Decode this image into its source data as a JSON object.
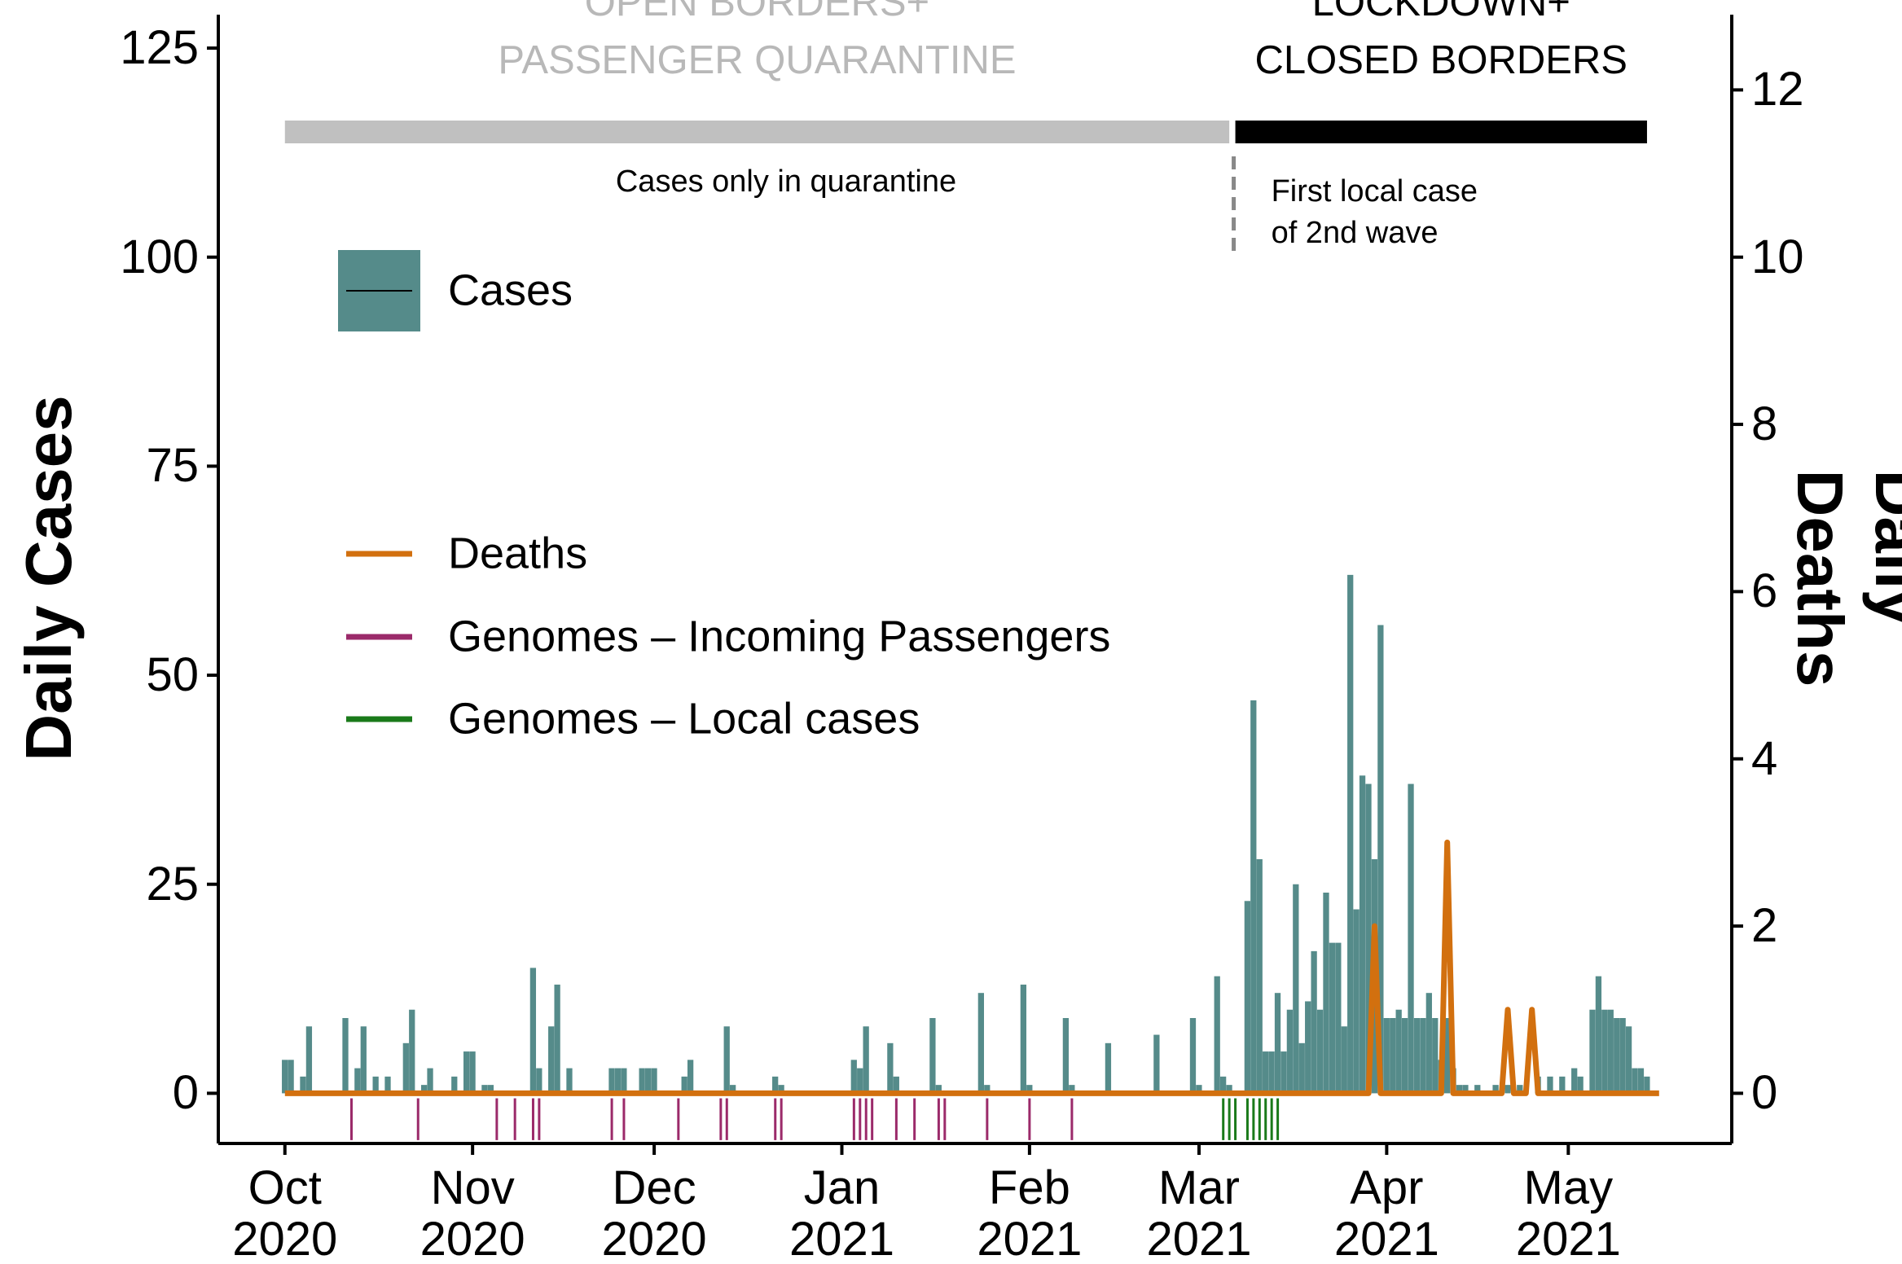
{
  "chart_data": {
    "type": "bar",
    "ylabel": "Daily Cases",
    "y2label": "Daily Deaths",
    "xlim": [
      "2020-09-20",
      "2021-05-28"
    ],
    "xticks": [
      {
        "value": "2020-10-01",
        "label": "Oct\n2020"
      },
      {
        "value": "2020-11-01",
        "label": "Nov\n2020"
      },
      {
        "value": "2020-12-01",
        "label": "Dec\n2020"
      },
      {
        "value": "2021-01-01",
        "label": "Jan\n2021"
      },
      {
        "value": "2021-02-01",
        "label": "Feb\n2021"
      },
      {
        "value": "2021-03-01",
        "label": "Mar\n2021"
      },
      {
        "value": "2021-04-01",
        "label": "Apr\n2021"
      },
      {
        "value": "2021-05-01",
        "label": "May\n2021"
      }
    ],
    "ylim": [
      -6,
      129
    ],
    "yticks": [
      0,
      25,
      50,
      75,
      100,
      125
    ],
    "y2lim": [
      -0.6,
      12.9
    ],
    "y2ticks": [
      0,
      2,
      4,
      6,
      8,
      10,
      12
    ],
    "series": [
      {
        "name": "Cases",
        "type": "bar",
        "color": "#558b8a",
        "x": [
          "2020-10-01",
          "2020-10-02",
          "2020-10-04",
          "2020-10-05",
          "2020-10-11",
          "2020-10-13",
          "2020-10-14",
          "2020-10-16",
          "2020-10-18",
          "2020-10-21",
          "2020-10-22",
          "2020-10-24",
          "2020-10-25",
          "2020-10-29",
          "2020-10-31",
          "2020-11-01",
          "2020-11-03",
          "2020-11-04",
          "2020-11-11",
          "2020-11-12",
          "2020-11-14",
          "2020-11-15",
          "2020-11-17",
          "2020-11-24",
          "2020-11-25",
          "2020-11-26",
          "2020-11-29",
          "2020-11-30",
          "2020-12-01",
          "2020-12-06",
          "2020-12-07",
          "2020-12-13",
          "2020-12-14",
          "2020-12-21",
          "2020-12-22",
          "2021-01-03",
          "2021-01-04",
          "2021-01-05",
          "2021-01-09",
          "2021-01-10",
          "2021-01-16",
          "2021-01-17",
          "2021-01-24",
          "2021-01-25",
          "2021-01-31",
          "2021-02-01",
          "2021-02-07",
          "2021-02-08",
          "2021-02-14",
          "2021-02-22",
          "2021-02-28",
          "2021-03-01",
          "2021-03-04",
          "2021-03-05",
          "2021-03-06",
          "2021-03-09",
          "2021-03-10",
          "2021-03-11",
          "2021-03-12",
          "2021-03-13",
          "2021-03-14",
          "2021-03-15",
          "2021-03-16",
          "2021-03-17",
          "2021-03-18",
          "2021-03-19",
          "2021-03-20",
          "2021-03-21",
          "2021-03-22",
          "2021-03-23",
          "2021-03-24",
          "2021-03-25",
          "2021-03-26",
          "2021-03-27",
          "2021-03-28",
          "2021-03-29",
          "2021-03-30",
          "2021-03-31",
          "2021-04-01",
          "2021-04-02",
          "2021-04-03",
          "2021-04-04",
          "2021-04-05",
          "2021-04-06",
          "2021-04-07",
          "2021-04-08",
          "2021-04-09",
          "2021-04-10",
          "2021-04-11",
          "2021-04-12",
          "2021-04-13",
          "2021-04-14",
          "2021-04-16",
          "2021-04-19",
          "2021-04-21",
          "2021-04-23",
          "2021-04-26",
          "2021-04-28",
          "2021-04-30",
          "2021-05-02",
          "2021-05-03",
          "2021-05-05",
          "2021-05-06",
          "2021-05-07",
          "2021-05-08",
          "2021-05-09",
          "2021-05-10",
          "2021-05-11",
          "2021-05-12",
          "2021-05-13",
          "2021-05-14"
        ],
        "values": [
          4,
          4,
          2,
          8,
          9,
          3,
          8,
          2,
          2,
          6,
          10,
          1,
          3,
          2,
          5,
          5,
          1,
          1,
          15,
          3,
          8,
          13,
          3,
          3,
          3,
          3,
          3,
          3,
          3,
          2,
          4,
          8,
          1,
          2,
          1,
          4,
          3,
          8,
          6,
          2,
          9,
          1,
          12,
          1,
          13,
          1,
          9,
          1,
          6,
          7,
          9,
          1,
          14,
          2,
          1,
          23,
          47,
          28,
          5,
          5,
          12,
          5,
          10,
          25,
          6,
          11,
          17,
          10,
          24,
          18,
          18,
          8,
          62,
          22,
          38,
          37,
          28,
          56,
          9,
          9,
          10,
          9,
          37,
          9,
          9,
          12,
          9,
          4,
          9,
          3,
          1,
          1,
          1,
          1,
          1,
          1,
          2,
          2,
          2,
          3,
          2,
          10,
          14,
          10,
          10,
          9,
          9,
          8,
          3,
          3,
          2
        ]
      },
      {
        "name": "Deaths",
        "type": "line",
        "axis": "y2",
        "color": "#d2700f",
        "x": [
          "2020-10-01",
          "2021-03-29",
          "2021-03-30",
          "2021-03-31",
          "2021-04-10",
          "2021-04-11",
          "2021-04-12",
          "2021-04-20",
          "2021-04-21",
          "2021-04-22",
          "2021-04-24",
          "2021-04-25",
          "2021-04-26",
          "2021-05-16"
        ],
        "values": [
          0,
          0,
          2,
          0,
          0,
          3,
          0,
          0,
          1,
          0,
          0,
          1,
          0,
          0
        ]
      },
      {
        "name": "Genomes – Incoming Passengers",
        "type": "rug",
        "color": "#9b2a6a",
        "x": [
          "2020-10-12",
          "2020-10-23",
          "2020-11-05",
          "2020-11-08",
          "2020-11-11",
          "2020-11-12",
          "2020-11-24",
          "2020-11-26",
          "2020-12-05",
          "2020-12-12",
          "2020-12-13",
          "2020-12-21",
          "2020-12-22",
          "2021-01-03",
          "2021-01-04",
          "2021-01-05",
          "2021-01-06",
          "2021-01-10",
          "2021-01-13",
          "2021-01-17",
          "2021-01-18",
          "2021-01-25",
          "2021-02-01",
          "2021-02-08"
        ]
      },
      {
        "name": "Genomes – Local cases",
        "type": "rug",
        "color": "#1a7a1a",
        "x": [
          "2021-03-05",
          "2021-03-06",
          "2021-03-07",
          "2021-03-09",
          "2021-03-10",
          "2021-03-11",
          "2021-03-12",
          "2021-03-13",
          "2021-03-14"
        ]
      }
    ],
    "periods": [
      {
        "label": "OPEN BORDERS+\nPASSENGER QUARANTINE",
        "start": "2020-10-01",
        "end": "2021-03-06",
        "color": "#c0c0c0"
      },
      {
        "label": "LOCKDOWN+\nCLOSED BORDERS",
        "start": "2021-03-07",
        "end": "2021-05-14",
        "color": "#000000"
      }
    ],
    "annotations": [
      {
        "text": "Cases only in quarantine"
      },
      {
        "text": "First local case\nof 2nd wave",
        "x": "2021-03-07"
      }
    ]
  }
}
